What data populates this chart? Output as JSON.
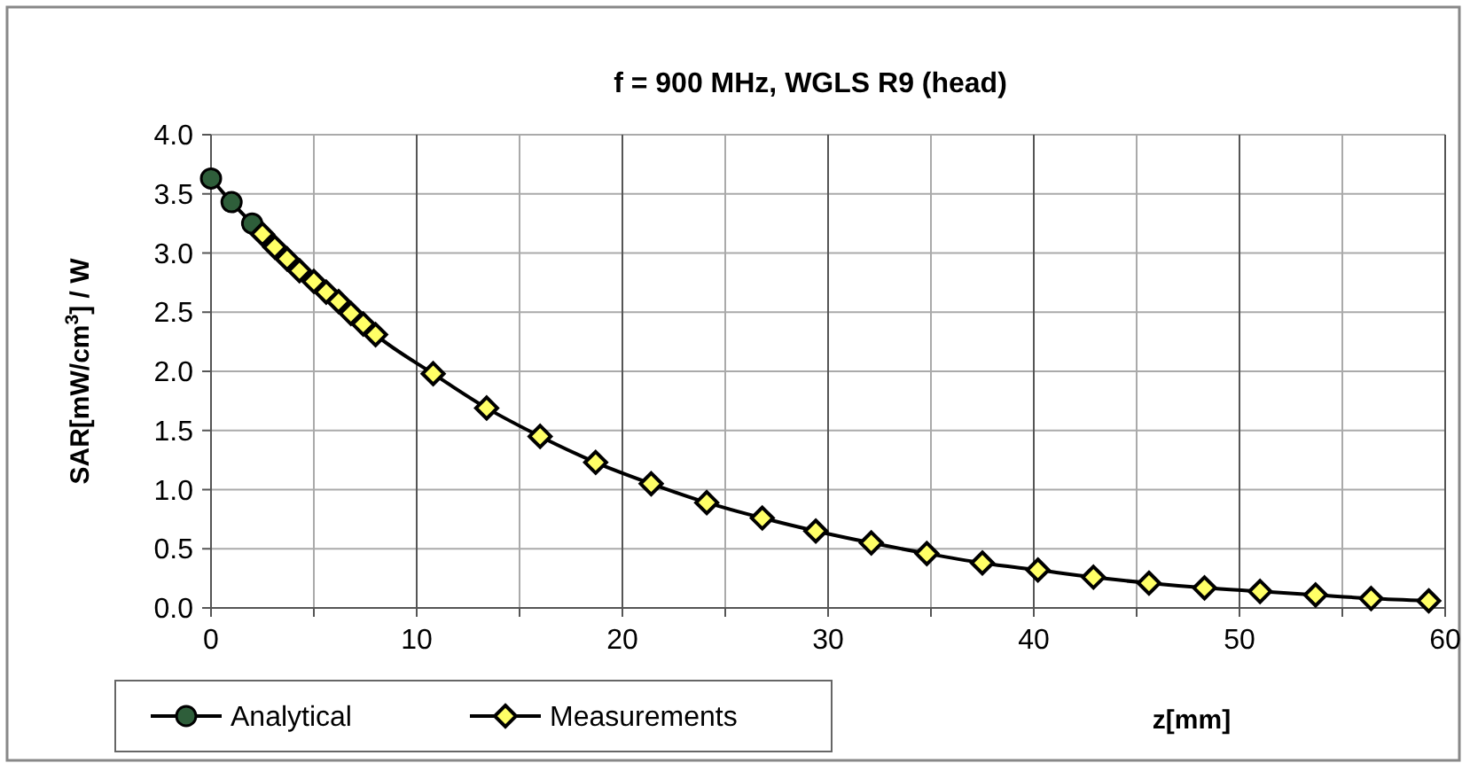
{
  "chart_data": {
    "type": "line",
    "title": "f = 900 MHz, WGLS R9 (head)",
    "xlabel": "z[mm]",
    "ylabel": "SAR[mW/cm$^{3}$] / W",
    "xlim": [
      0,
      60
    ],
    "xticks": [
      0,
      {
        "value": 5,
        "label": null
      },
      10,
      {
        "value": 15,
        "label": null
      },
      20,
      {
        "value": 25,
        "label": null
      },
      30,
      {
        "value": 35,
        "label": null
      },
      40,
      {
        "value": 45,
        "label": null
      },
      50,
      {
        "value": 55,
        "label": null
      },
      60
    ],
    "ylim": [
      0,
      4
    ],
    "yticks": [
      {
        "value": 0,
        "label": "0.0"
      },
      {
        "value": 0.5,
        "label": "0.5"
      },
      {
        "value": 1,
        "label": "1.0"
      },
      {
        "value": 1.5,
        "label": "1.5"
      },
      {
        "value": 2,
        "label": "2.0"
      },
      {
        "value": 2.5,
        "label": "2.5"
      },
      {
        "value": 3,
        "label": "3.0"
      },
      {
        "value": 3.5,
        "label": "3.5"
      },
      {
        "value": 4,
        "label": "4.0"
      }
    ],
    "grid": true,
    "legend": "bottom left",
    "series": [
      {
        "name": "Analytical",
        "color": "#2e5e3a",
        "marker": "circle",
        "x": [
          0,
          1,
          2
        ],
        "values": [
          3.63,
          3.43,
          3.25
        ]
      },
      {
        "name": "Measurements",
        "color": "#ffff66",
        "marker": "diamond",
        "x": [
          2.5,
          3.1,
          3.7,
          4.3,
          5.0,
          5.6,
          6.2,
          6.8,
          7.4,
          8.0,
          10.8,
          13.4,
          16.0,
          18.7,
          21.4,
          24.1,
          26.8,
          29.4,
          32.1,
          34.8,
          37.5,
          40.2,
          42.9,
          45.6,
          48.3,
          51.0,
          53.7,
          56.4,
          59.2
        ],
        "values": [
          3.16,
          3.05,
          2.95,
          2.85,
          2.76,
          2.67,
          2.59,
          2.49,
          2.4,
          2.31,
          1.98,
          1.69,
          1.45,
          1.23,
          1.05,
          0.89,
          0.76,
          0.65,
          0.55,
          0.46,
          0.38,
          0.32,
          0.26,
          0.21,
          0.17,
          0.14,
          0.11,
          0.08,
          0.06
        ]
      }
    ]
  }
}
